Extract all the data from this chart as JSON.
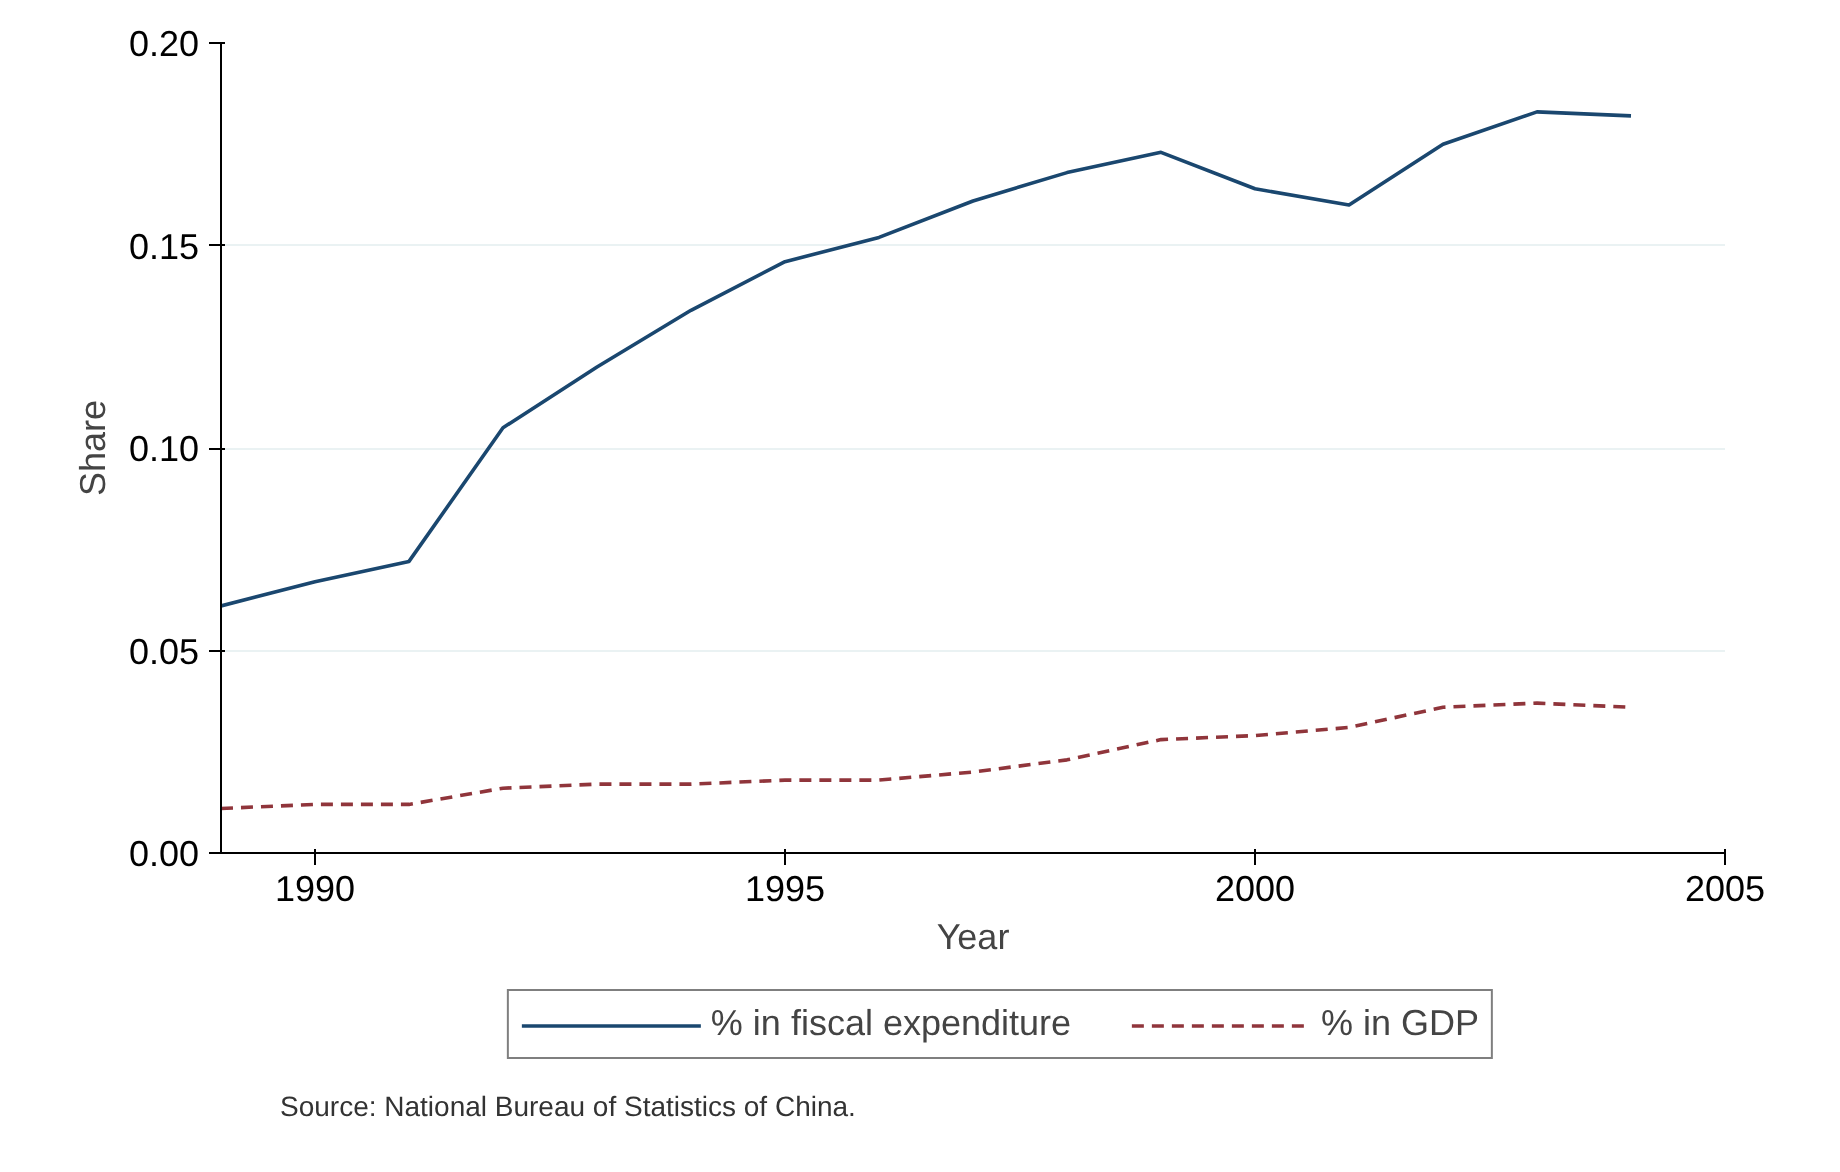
{
  "chart_data": {
    "type": "line",
    "xlabel": "Year",
    "ylabel": "Share",
    "x": [
      1989,
      1990,
      1991,
      1992,
      1993,
      1994,
      1995,
      1996,
      1997,
      1998,
      1999,
      2000,
      2001,
      2002,
      2003,
      2004
    ],
    "series": [
      {
        "name": "% in fiscal expenditure",
        "color": "#1a476f",
        "line_style": "solid",
        "values": [
          0.061,
          0.067,
          0.072,
          0.105,
          0.12,
          0.134,
          0.146,
          0.152,
          0.161,
          0.168,
          0.173,
          0.164,
          0.16,
          0.175,
          0.183,
          0.182
        ]
      },
      {
        "name": "% in GDP",
        "color": "#90353b",
        "line_style": "dashed",
        "values": [
          0.011,
          0.012,
          0.012,
          0.016,
          0.017,
          0.017,
          0.018,
          0.018,
          0.02,
          0.023,
          0.028,
          0.029,
          0.031,
          0.036,
          0.037,
          0.036
        ]
      }
    ],
    "xlim": [
      1989,
      2005
    ],
    "xticks": [
      1990,
      1995,
      2000,
      2005
    ],
    "ylim": [
      0,
      0.2
    ],
    "yticks": [
      {
        "value": 0,
        "label": "0.00"
      },
      {
        "value": 0.05,
        "label": "0.05"
      },
      {
        "value": 0.1,
        "label": "0.10"
      },
      {
        "value": 0.15,
        "label": "0.15"
      },
      {
        "value": 0.2,
        "label": "0.20"
      }
    ],
    "grid": "y",
    "legend": "bottom",
    "marker": "none",
    "annotations": [
      "Source: National Bureau of Statistics of China."
    ]
  }
}
